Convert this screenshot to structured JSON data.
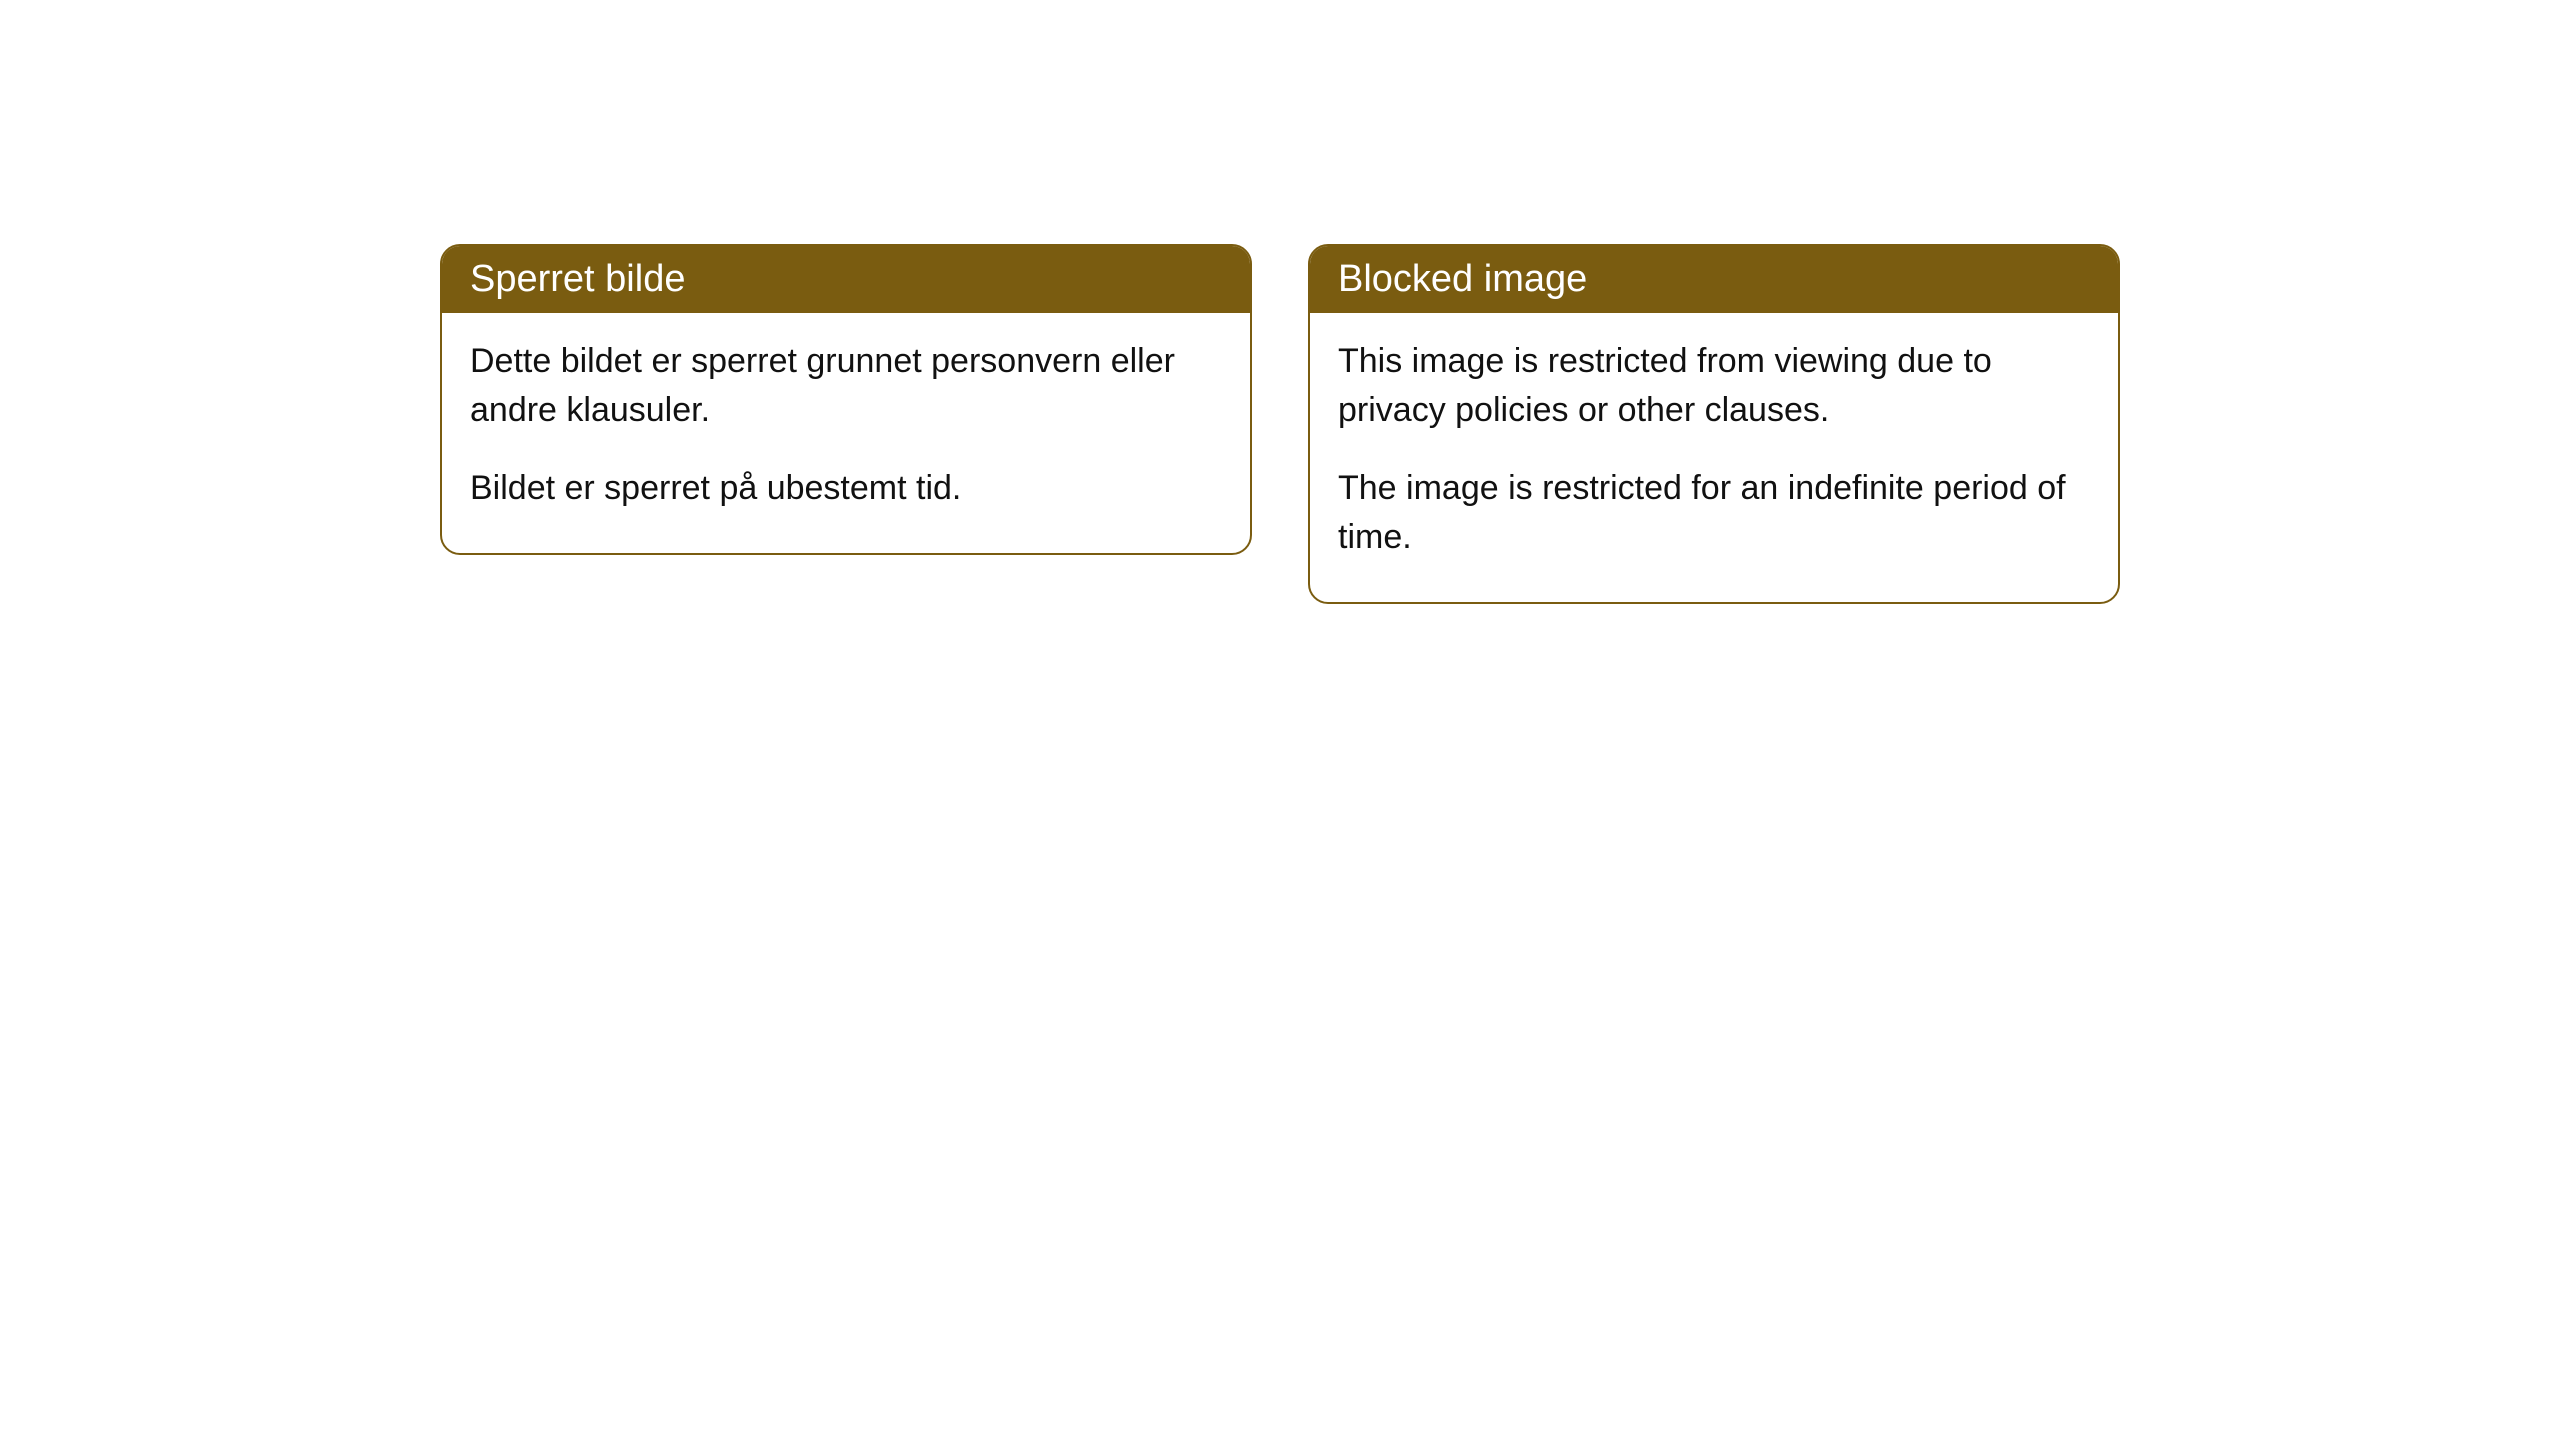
{
  "cards": [
    {
      "title": "Sperret bilde",
      "paragraph1": "Dette bildet er sperret grunnet personvern eller andre klausuler.",
      "paragraph2": "Bildet er sperret på ubestemt tid."
    },
    {
      "title": "Blocked image",
      "paragraph1": "This image is restricted from viewing due to privacy policies or other clauses.",
      "paragraph2": "The image is restricted for an indefinite period of time."
    }
  ],
  "styling": {
    "header_background": "#7a5c10",
    "header_text_color": "#ffffff",
    "border_color": "#7a5c10",
    "body_background": "#ffffff",
    "body_text_color": "#111111",
    "border_radius": 20,
    "header_fontsize": 38,
    "body_fontsize": 34
  }
}
